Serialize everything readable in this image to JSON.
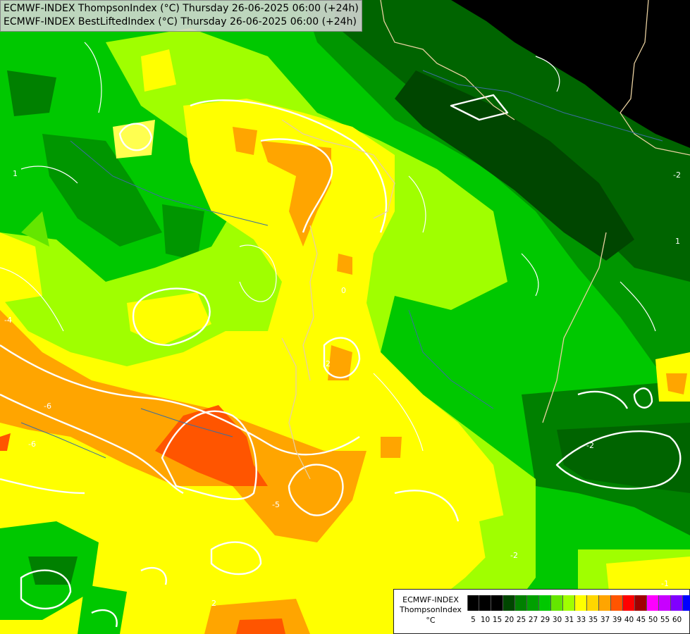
{
  "header": {
    "line1": "ECMWF-INDEX ThompsonIndex (°C) Thursday 26-06-2025 06:00 (+24h)",
    "line2": "ECMWF-INDEX BestLiftedIndex (°C) Thursday 26-06-2025 06:00 (+24h)"
  },
  "legend": {
    "title": "ECMWF-INDEX",
    "subtitle": "ThompsonIndex",
    "unit": "°C",
    "colors": [
      "#000000",
      "#000000",
      "#000000",
      "#000000",
      "#004600",
      "#008000",
      "#00a000",
      "#00c800",
      "#64e600",
      "#a0ff00",
      "#ffff00",
      "#ffff50",
      "#ffd700",
      "#ffa500",
      "#ff5500",
      "#ff0000",
      "#a00000",
      "#c80000",
      "#ff00ff",
      "#c800ff",
      "#8000ff",
      "#0000ff"
    ],
    "ticks": [
      "5",
      "10",
      "15",
      "20",
      "25",
      "27",
      "29",
      "30",
      "31",
      "33",
      "35",
      "37",
      "39",
      "40",
      "45",
      "50",
      "55",
      "60"
    ]
  },
  "contour_labels": [
    "-4",
    "-6",
    "-6",
    "-5",
    "-2",
    "-2",
    "-2",
    "2",
    "1",
    "1",
    "-1",
    "0",
    "2"
  ]
}
